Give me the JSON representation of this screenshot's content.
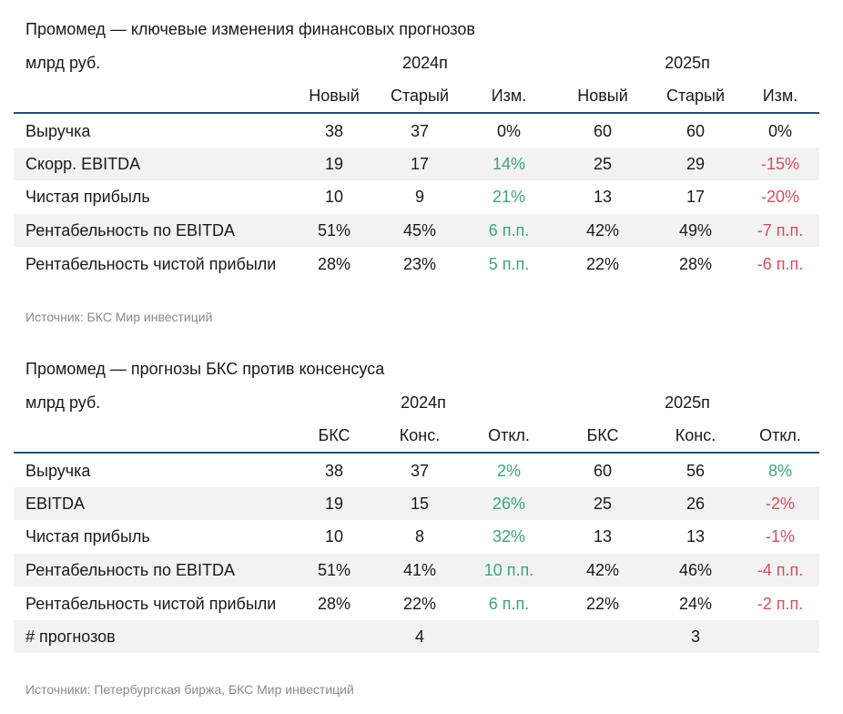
{
  "table1": {
    "title": "Промомед — ключевые изменения финансовых прогнозов",
    "unit": "млрд руб.",
    "year1": "2024п",
    "year2": "2025п",
    "headers": [
      "Новый",
      "Старый",
      "Изм.",
      "Новый",
      "Старый",
      "Изм."
    ],
    "rows": [
      {
        "label": "Выручка",
        "v": [
          "38",
          "37",
          "0%",
          "60",
          "60",
          "0%"
        ],
        "c3": "neu",
        "c6": "neu"
      },
      {
        "label": "Скорр. EBITDA",
        "v": [
          "19",
          "17",
          "14%",
          "25",
          "29",
          "-15%"
        ],
        "c3": "pos",
        "c6": "neg"
      },
      {
        "label": "Чистая прибыль",
        "v": [
          "10",
          "9",
          "21%",
          "13",
          "17",
          "-20%"
        ],
        "c3": "pos",
        "c6": "neg"
      },
      {
        "label": "Рентабельность по EBITDA",
        "v": [
          "51%",
          "45%",
          "6 п.п.",
          "42%",
          "49%",
          "-7 п.п."
        ],
        "c3": "pos",
        "c6": "neg"
      },
      {
        "label": "Рентабельность чистой прибыли",
        "v": [
          "28%",
          "23%",
          "5 п.п.",
          "22%",
          "28%",
          "-6 п.п."
        ],
        "c3": "pos",
        "c6": "neg"
      }
    ],
    "source": "Источник: БКС Мир инвестиций"
  },
  "table2": {
    "title": "Промомед — прогнозы БКС против консенсуса",
    "unit": "млрд руб.",
    "year1": "2024п",
    "year2": "2025п",
    "headers": [
      "БКС",
      "Конс.",
      "Откл.",
      "БКС",
      "Конс.",
      "Откл."
    ],
    "rows": [
      {
        "label": "Выручка",
        "v": [
          "38",
          "37",
          "2%",
          "60",
          "56",
          "8%"
        ],
        "c3": "pos",
        "c6": "pos"
      },
      {
        "label": "EBITDA",
        "v": [
          "19",
          "15",
          "26%",
          "25",
          "26",
          "-2%"
        ],
        "c3": "pos",
        "c6": "neg"
      },
      {
        "label": "Чистая прибыль",
        "v": [
          "10",
          "8",
          "32%",
          "13",
          "13",
          "-1%"
        ],
        "c3": "pos",
        "c6": "neg"
      },
      {
        "label": "Рентабельность по EBITDA",
        "v": [
          "51%",
          "41%",
          "10 п.п.",
          "42%",
          "46%",
          "-4 п.п."
        ],
        "c3": "pos",
        "c6": "neg"
      },
      {
        "label": "Рентабельность чистой прибыли",
        "v": [
          "28%",
          "22%",
          "6 п.п.",
          "22%",
          "24%",
          "-2 п.п."
        ],
        "c3": "pos",
        "c6": "neg"
      },
      {
        "label": "# прогнозов",
        "v": [
          "",
          "4",
          "",
          "",
          "3",
          ""
        ],
        "c3": "neu",
        "c6": "neu"
      }
    ],
    "source": "Источники: Петербургская биржа, БКС Мир инвестиций"
  },
  "colors": {
    "positive": "#3aa57a",
    "negative": "#d94d5c",
    "header_rule": "#1f4e79",
    "shade": "#f2f2f2"
  }
}
